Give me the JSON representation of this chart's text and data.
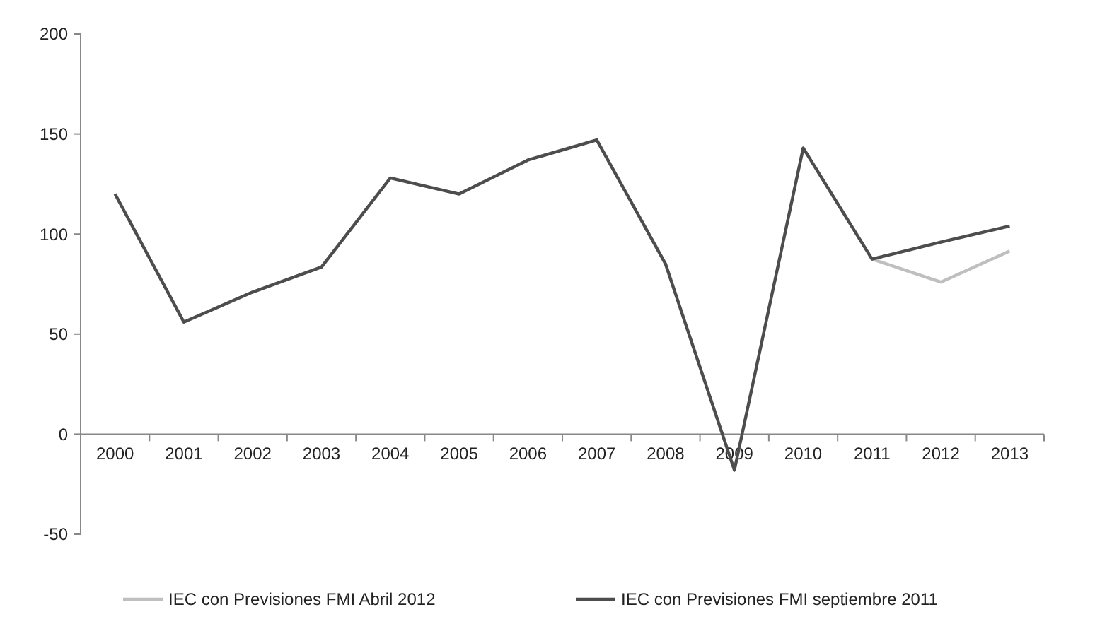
{
  "chart_data": {
    "type": "line",
    "categories": [
      "2000",
      "2001",
      "2002",
      "2003",
      "2004",
      "2005",
      "2006",
      "2007",
      "2008",
      "2009",
      "2010",
      "2011",
      "2012",
      "2013"
    ],
    "series": [
      {
        "name": "IEC con Previsiones FMI Abril 2012",
        "color": "#bfbfbf",
        "values": [
          null,
          null,
          null,
          null,
          null,
          null,
          null,
          null,
          null,
          null,
          null,
          87.5,
          76,
          91.5
        ]
      },
      {
        "name": "IEC con Previsiones FMI septiembre 2011",
        "color": "#4d4d4d",
        "values": [
          120,
          56,
          71,
          83.5,
          128,
          120,
          137,
          147,
          85,
          -18,
          143,
          87.5,
          96,
          104
        ]
      }
    ],
    "ylim": [
      -50,
      200
    ],
    "yticks": [
      -50,
      0,
      50,
      100,
      150,
      200
    ],
    "grid": false,
    "legend": "bottom",
    "marker": "none",
    "line_style": "solid"
  }
}
